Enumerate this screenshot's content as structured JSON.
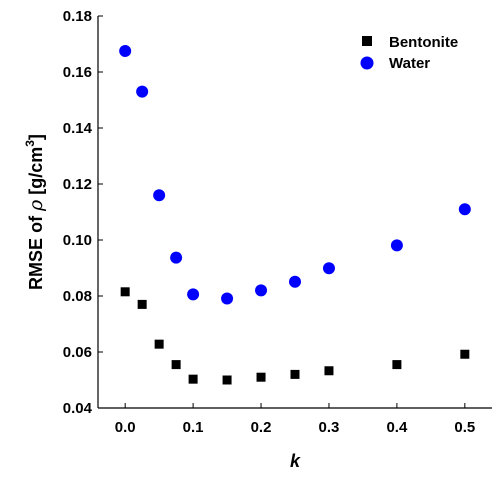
{
  "chart_data": {
    "type": "scatter",
    "xlabel": "k",
    "ylabel_prefix": "RMSE of ",
    "ylabel_symbol": "ρ",
    "ylabel_unit_open": " [g/cm",
    "ylabel_unit_exp": "3",
    "ylabel_unit_close": "]",
    "xlim": [
      -0.04,
      0.54
    ],
    "ylim": [
      0.04,
      0.18
    ],
    "xticks": [
      0.0,
      0.1,
      0.2,
      0.3,
      0.4,
      0.5
    ],
    "xtick_labels": [
      "0.0",
      "0.1",
      "0.2",
      "0.3",
      "0.4",
      "0.5"
    ],
    "yticks": [
      0.04,
      0.06,
      0.08,
      0.1,
      0.12,
      0.14,
      0.16,
      0.18
    ],
    "ytick_labels": [
      "0.04",
      "0.06",
      "0.08",
      "0.10",
      "0.12",
      "0.14",
      "0.16",
      "0.18"
    ],
    "grid": false,
    "legend_position": "top-right",
    "series": [
      {
        "name": "Bentonite",
        "marker": "square",
        "color": "#000000",
        "x": [
          0.0,
          0.025,
          0.05,
          0.075,
          0.1,
          0.15,
          0.2,
          0.25,
          0.3,
          0.4,
          0.5
        ],
        "y": [
          0.0815,
          0.077,
          0.0628,
          0.0555,
          0.0503,
          0.05,
          0.051,
          0.052,
          0.0533,
          0.0555,
          0.0592
        ]
      },
      {
        "name": "Water",
        "marker": "circle",
        "color": "#0000ff",
        "x": [
          0.0,
          0.025,
          0.05,
          0.075,
          0.1,
          0.15,
          0.2,
          0.25,
          0.3,
          0.4,
          0.5
        ],
        "y": [
          0.1675,
          0.153,
          0.116,
          0.0937,
          0.0806,
          0.0791,
          0.082,
          0.0851,
          0.0899,
          0.0981,
          0.111
        ]
      }
    ]
  }
}
